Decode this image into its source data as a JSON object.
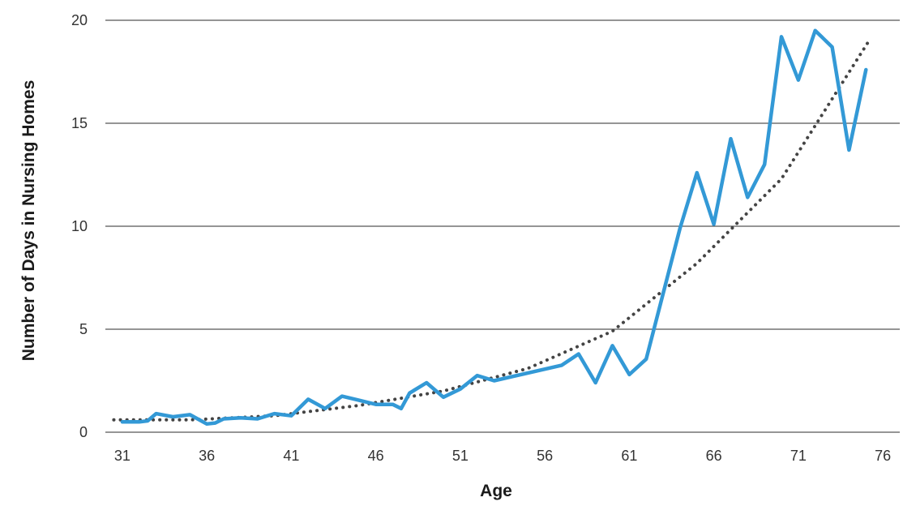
{
  "chart_data": {
    "type": "line",
    "title": "",
    "xlabel": "Age",
    "ylabel": "Number of Days in Nursing Homes",
    "xlim": [
      30,
      77
    ],
    "ylim": [
      0,
      20
    ],
    "x_ticks": [
      31,
      36,
      41,
      46,
      51,
      56,
      61,
      66,
      71,
      76
    ],
    "y_ticks": [
      0,
      5,
      10,
      15,
      20
    ],
    "grid": "horizontal",
    "legend": "none",
    "series": [
      {
        "style": "solid",
        "color": "#3399d6",
        "x": [
          31,
          32,
          32.5,
          33,
          34,
          35,
          36,
          36.5,
          37,
          38,
          39,
          40,
          41,
          42,
          43,
          44,
          45,
          46,
          47,
          47.5,
          48,
          49,
          50,
          51,
          52,
          53,
          57,
          58,
          59,
          60,
          61,
          62,
          64,
          65,
          66,
          67,
          68,
          69,
          70,
          71,
          72,
          73,
          74,
          75
        ],
        "y": [
          0.5,
          0.5,
          0.55,
          0.9,
          0.75,
          0.85,
          0.4,
          0.45,
          0.65,
          0.7,
          0.65,
          0.9,
          0.8,
          1.6,
          1.15,
          1.75,
          1.55,
          1.35,
          1.35,
          1.15,
          1.9,
          2.4,
          1.7,
          2.1,
          2.75,
          2.5,
          3.25,
          3.8,
          2.4,
          4.2,
          2.8,
          3.55,
          9.9,
          12.6,
          10.1,
          14.25,
          11.4,
          13.0,
          19.2,
          17.1,
          19.5,
          18.7,
          13.7,
          17.6
        ]
      },
      {
        "style": "dotted",
        "color": "#444444",
        "x": [
          30.5,
          35,
          40,
          45,
          50,
          55,
          60,
          65,
          70,
          75.1
        ],
        "y": [
          0.6,
          0.6,
          0.8,
          1.3,
          2.0,
          3.1,
          4.9,
          8.2,
          12.3,
          18.9
        ]
      }
    ]
  }
}
